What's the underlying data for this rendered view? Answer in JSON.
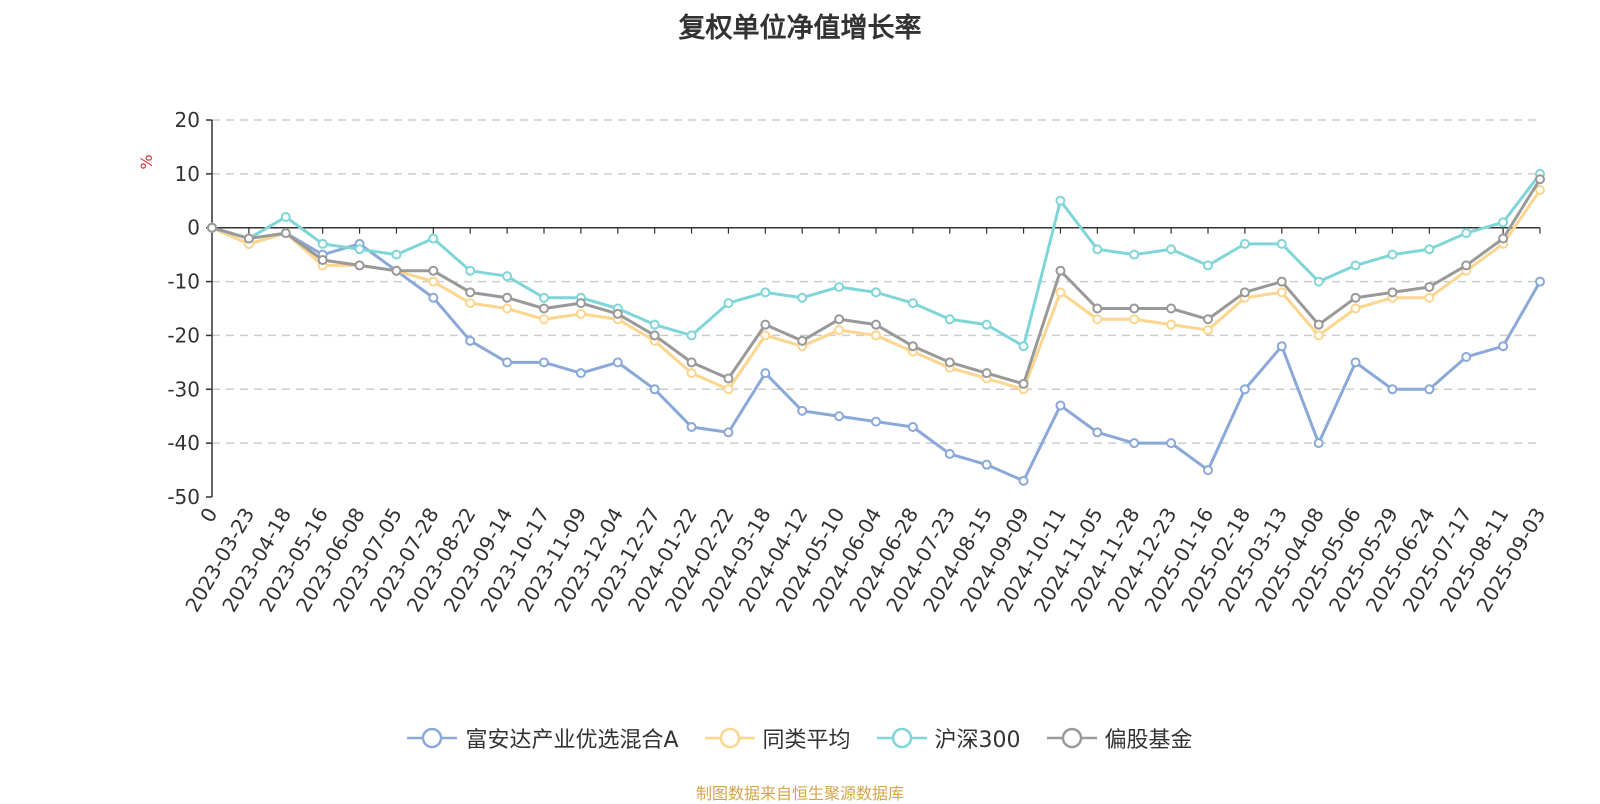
{
  "chart_data": {
    "type": "line",
    "title": "复权单位净值增长率",
    "ylabel": "%",
    "ylim": [
      -50,
      20
    ],
    "yticks": [
      20,
      10,
      0,
      -10,
      -20,
      -30,
      -40,
      -50
    ],
    "grid": true,
    "legend_placement": "bottom-center",
    "x_categories": [
      "0",
      "2023-03-23",
      "2023-04-18",
      "2023-05-16",
      "2023-06-08",
      "2023-07-05",
      "2023-07-28",
      "2023-08-22",
      "2023-09-14",
      "2023-10-17",
      "2023-11-09",
      "2023-12-04",
      "2023-12-27",
      "2024-01-22",
      "2024-02-22",
      "2024-03-18",
      "2024-04-12",
      "2024-05-10",
      "2024-06-04",
      "2024-06-28",
      "2024-07-23",
      "2024-08-15",
      "2024-09-09",
      "2024-10-11",
      "2024-11-05",
      "2024-11-28",
      "2024-12-23",
      "2025-01-16",
      "2025-02-18",
      "2025-03-13",
      "2025-04-08",
      "2025-05-06",
      "2025-05-29",
      "2025-06-24",
      "2025-07-17",
      "2025-08-11",
      "2025-09-03"
    ],
    "series": [
      {
        "name": "富安达产业优选混合A",
        "color": "#8aa8d8",
        "values": [
          0,
          -3,
          -1,
          -5,
          -3,
          -8,
          -13,
          -21,
          -25,
          -25,
          -27,
          -25,
          -30,
          -37,
          -38,
          -27,
          -34,
          -35,
          -36,
          -37,
          -42,
          -44,
          -47,
          -33,
          -38,
          -40,
          -40,
          -45,
          -30,
          -22,
          -40,
          -25,
          -30,
          -30,
          -24,
          -22,
          -10
        ]
      },
      {
        "name": "同类平均",
        "color": "#fcd58e",
        "values": [
          0,
          -3,
          -1,
          -7,
          -7,
          -8,
          -10,
          -14,
          -15,
          -17,
          -16,
          -17,
          -21,
          -27,
          -30,
          -20,
          -22,
          -19,
          -20,
          -23,
          -26,
          -28,
          -30,
          -12,
          -17,
          -17,
          -18,
          -19,
          -13,
          -12,
          -20,
          -15,
          -13,
          -13,
          -8,
          -3,
          7
        ]
      },
      {
        "name": "沪深300",
        "color": "#7fd5d8",
        "values": [
          0,
          -2,
          2,
          -3,
          -4,
          -5,
          -2,
          -8,
          -9,
          -13,
          -13,
          -15,
          -18,
          -20,
          -14,
          -12,
          -13,
          -11,
          -12,
          -14,
          -17,
          -18,
          -22,
          5,
          -4,
          -5,
          -4,
          -7,
          -3,
          -3,
          -10,
          -7,
          -5,
          -4,
          -1,
          1,
          10
        ]
      },
      {
        "name": "偏股基金",
        "color": "#999999",
        "values": [
          0,
          -2,
          -1,
          -6,
          -7,
          -8,
          -8,
          -12,
          -13,
          -15,
          -14,
          -16,
          -20,
          -25,
          -28,
          -18,
          -21,
          -17,
          -18,
          -22,
          -25,
          -27,
          -29,
          -8,
          -15,
          -15,
          -15,
          -17,
          -12,
          -10,
          -18,
          -13,
          -12,
          -11,
          -7,
          -2,
          9
        ]
      }
    ]
  },
  "footer": "制图数据来自恒生聚源数据库"
}
